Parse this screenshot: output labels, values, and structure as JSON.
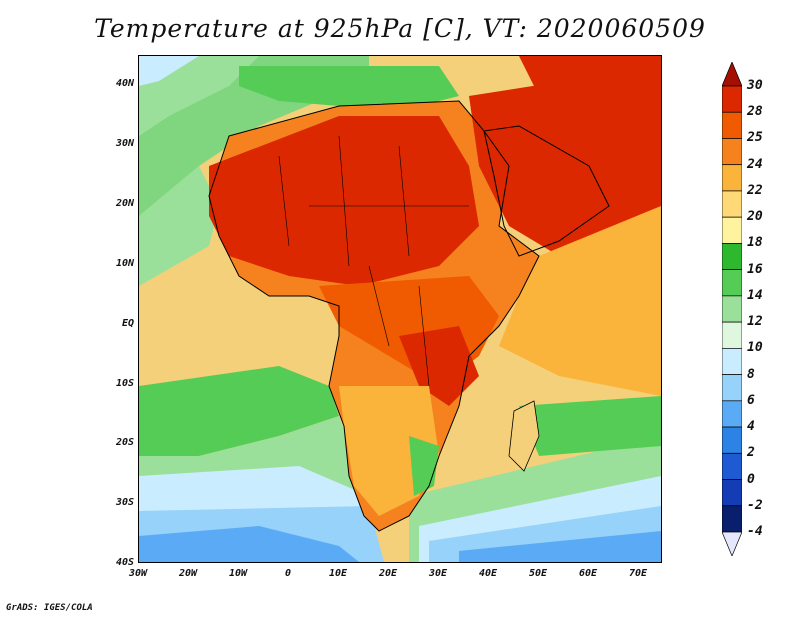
{
  "title": "Temperature at 925hPa [C], VT: 2020060509",
  "footer": "GrADS: IGES/COLA",
  "lat_labels": [
    "40N",
    "30N",
    "20N",
    "10N",
    "EQ",
    "10S",
    "20S",
    "30S",
    "40S"
  ],
  "lon_labels": [
    "30W",
    "20W",
    "10W",
    "0",
    "10E",
    "20E",
    "30E",
    "40E",
    "50E",
    "60E",
    "70E"
  ],
  "colorbar": {
    "labels": [
      "30",
      "28",
      "25",
      "24",
      "22",
      "20",
      "18",
      "16",
      "14",
      "12",
      "10",
      "8",
      "6",
      "4",
      "2",
      "0",
      "-2",
      "-4"
    ],
    "colors": [
      "#a50f00",
      "#dc2800",
      "#f05a00",
      "#f5821e",
      "#fab43c",
      "#ffd878",
      "#fff3a0",
      "#2eb82e",
      "#55cc55",
      "#9ae09a",
      "#dff7df",
      "#c9ecff",
      "#96d2fa",
      "#5aaaf5",
      "#2d82e6",
      "#1e5ad2",
      "#143cb4",
      "#0a1e6e",
      "#e6e6ff"
    ]
  },
  "colors": {
    "hot": "#dc2800",
    "warm": "#f5821e",
    "mild": "#fab43c",
    "cool_green": "#55cc55",
    "cold_blue": "#5aaaf5"
  }
}
